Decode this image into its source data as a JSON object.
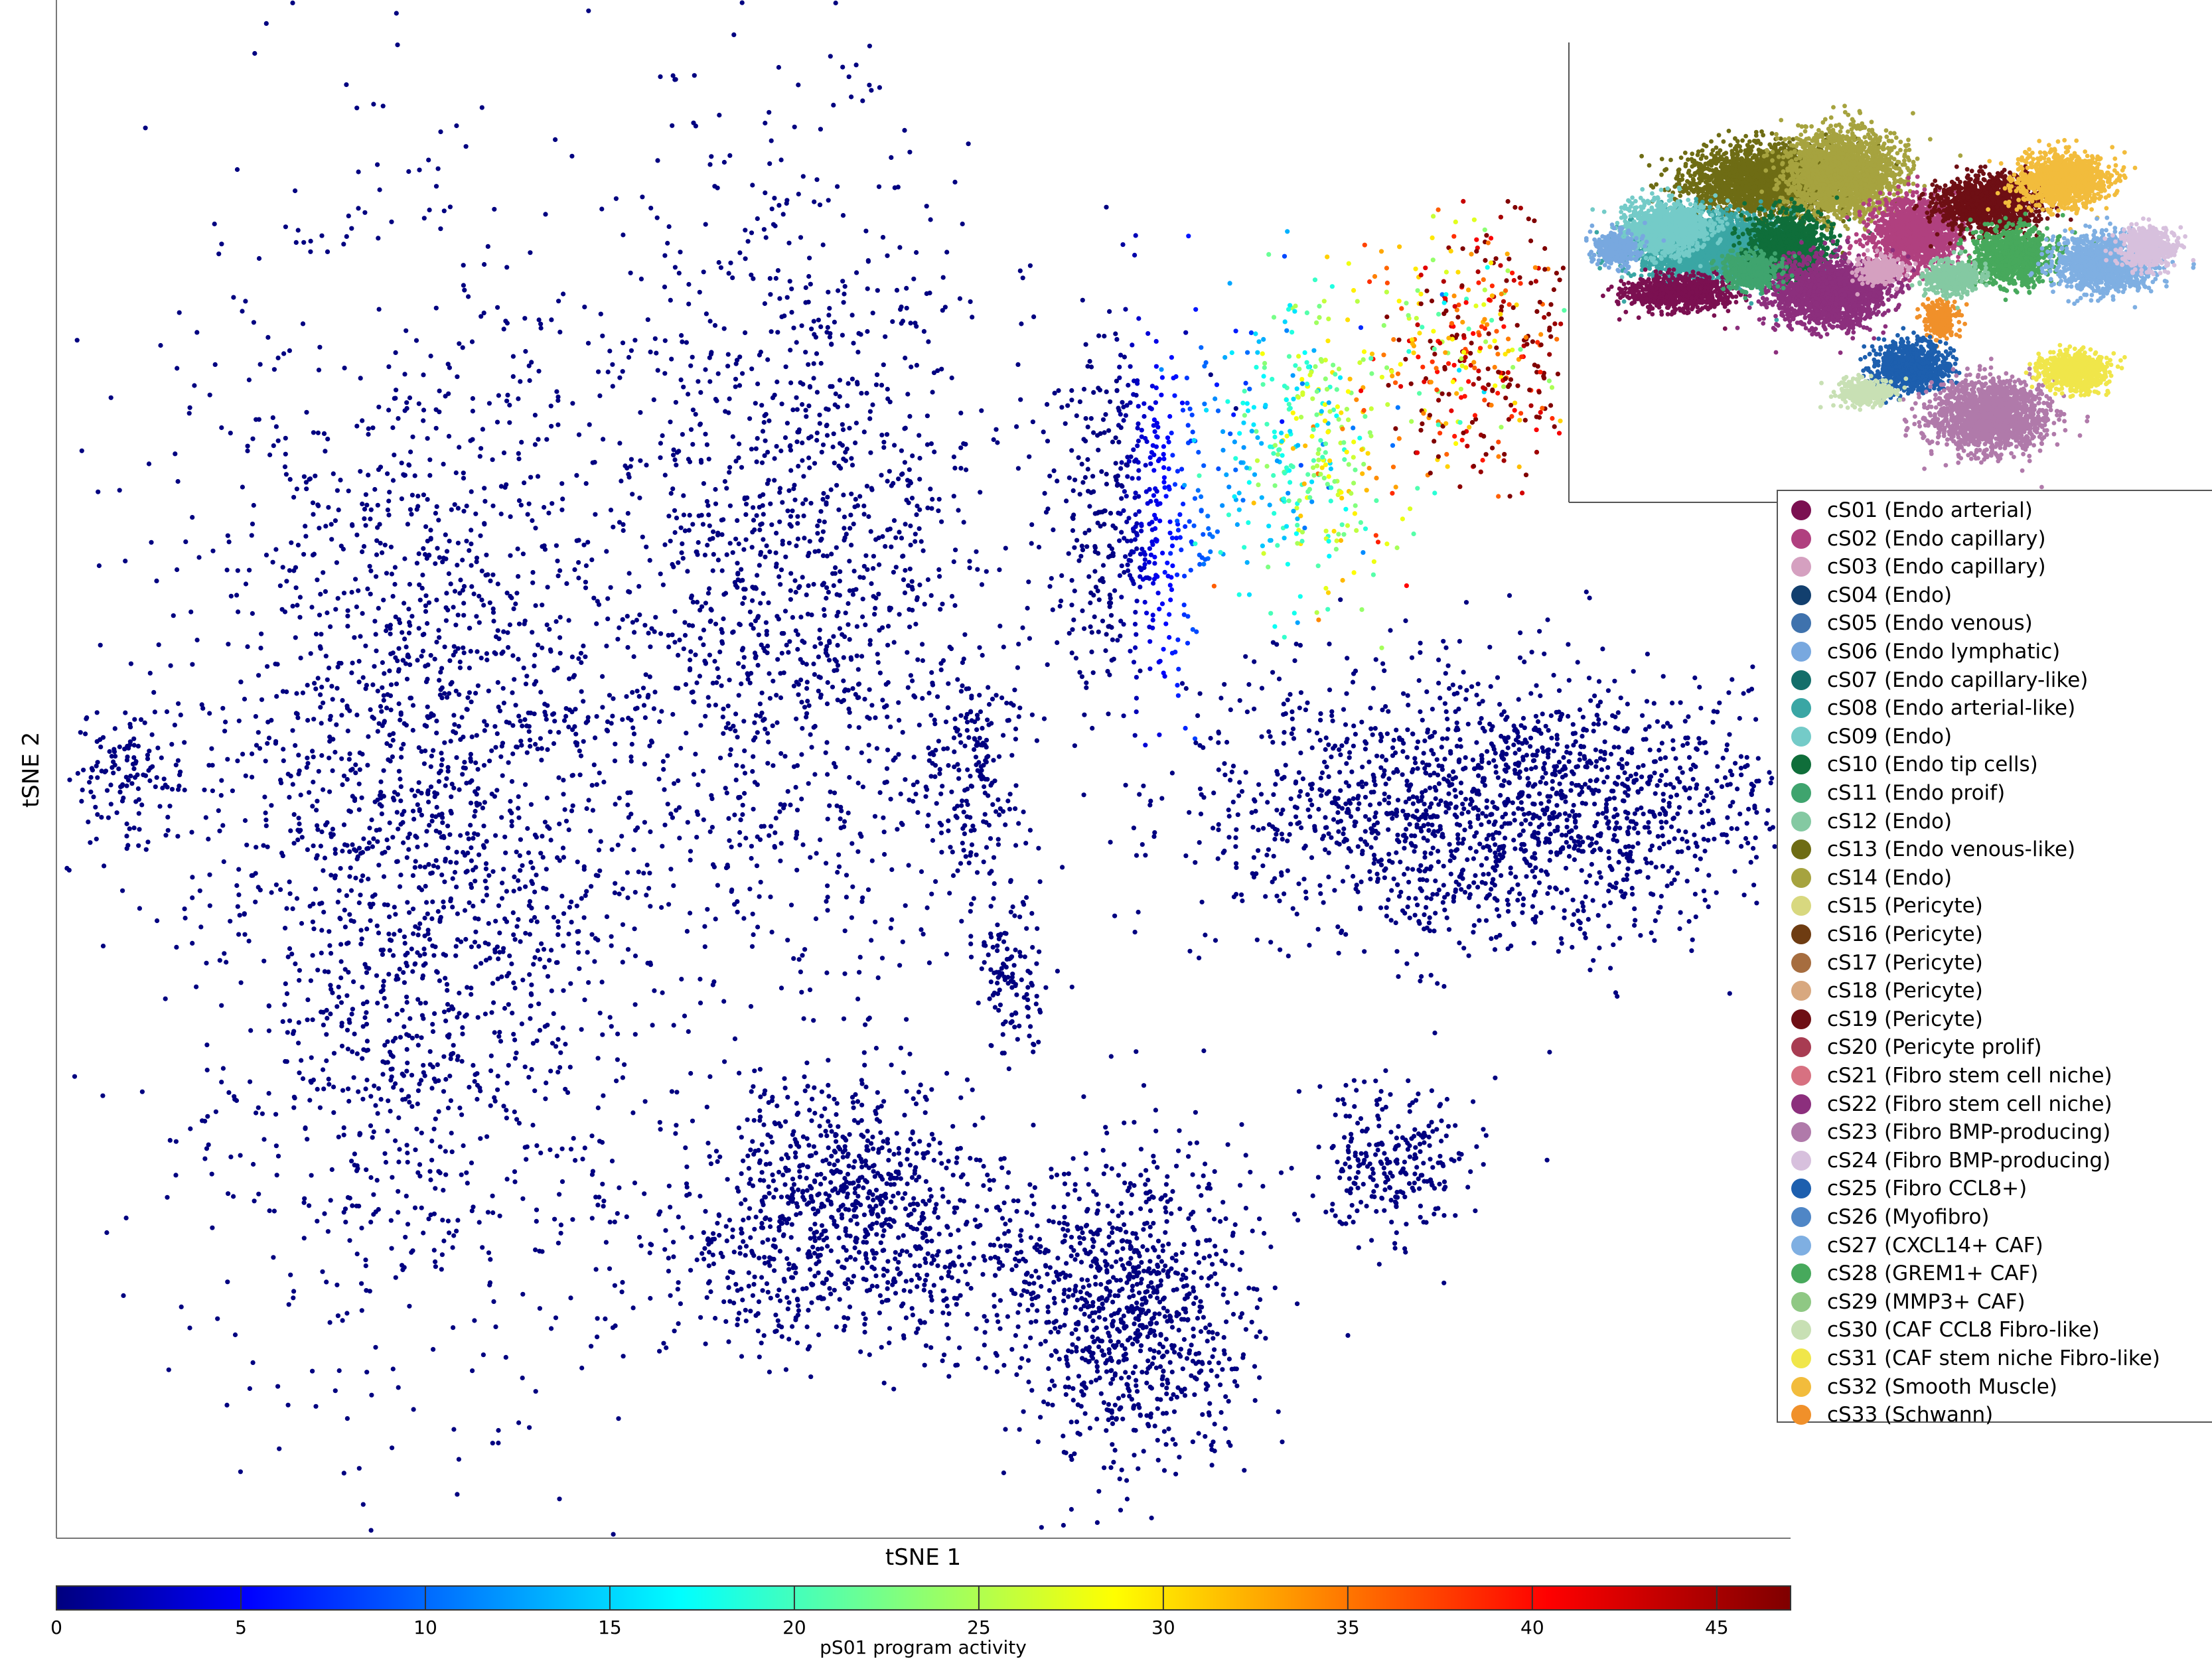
{
  "chart_data": {
    "type": "scatter",
    "xlabel": "tSNE 1",
    "ylabel": "tSNE 2",
    "grid": false,
    "colorbar": {
      "label": "pS01 program activity",
      "min": 0,
      "max": 47,
      "ticks": [
        0,
        5,
        10,
        15,
        20,
        25,
        30,
        35,
        40,
        45
      ],
      "colormap": "jet"
    },
    "legend": {
      "placement": "right",
      "entries": [
        {
          "label": "cS01 (Endo arterial)",
          "color": "#7b1051"
        },
        {
          "label": "cS02 (Endo capillary)",
          "color": "#b0407f"
        },
        {
          "label": "cS03 (Endo capillary)",
          "color": "#d5a0c0"
        },
        {
          "label": "cS04 (Endo)",
          "color": "#123f6e"
        },
        {
          "label": "cS05 (Endo venous)",
          "color": "#3f72ad"
        },
        {
          "label": "cS06 (Endo lymphatic)",
          "color": "#78a8df"
        },
        {
          "label": "cS07 (Endo capillary-like)",
          "color": "#136e6a"
        },
        {
          "label": "cS08 (Endo arterial-like)",
          "color": "#3aa6a4"
        },
        {
          "label": "cS09 (Endo)",
          "color": "#74cbc8"
        },
        {
          "label": "cS10 (Endo tip cells)",
          "color": "#0f6e3a"
        },
        {
          "label": "cS11 (Endo proif)",
          "color": "#3fa46e"
        },
        {
          "label": "cS12 (Endo)",
          "color": "#84c9a2"
        },
        {
          "label": "cS13 (Endo venous-like)",
          "color": "#6e6c14"
        },
        {
          "label": "cS14 (Endo)",
          "color": "#a6a33f"
        },
        {
          "label": "cS15 (Pericyte)",
          "color": "#d8d87f"
        },
        {
          "label": "cS16 (Pericyte)",
          "color": "#6e3c12"
        },
        {
          "label": "cS17 (Pericyte)",
          "color": "#a66d3f"
        },
        {
          "label": "cS18 (Pericyte)",
          "color": "#d8a87f"
        },
        {
          "label": "cS19 (Pericyte)",
          "color": "#6e0f14"
        },
        {
          "label": "cS20 (Pericyte prolif)",
          "color": "#a83c52"
        },
        {
          "label": "cS21 (Fibro stem cell niche)",
          "color": "#d77181"
        },
        {
          "label": "cS22 (Fibro stem cell niche)",
          "color": "#8c2f7d"
        },
        {
          "label": "cS23 (Fibro BMP-producing)",
          "color": "#b07aaa"
        },
        {
          "label": "cS24 (Fibro BMP-producing)",
          "color": "#d7c0dd"
        },
        {
          "label": "cS25 (Fibro CCL8+)",
          "color": "#1d5fae"
        },
        {
          "label": "cS26 (Myofibro)",
          "color": "#4f86c6"
        },
        {
          "label": "cS27 (CXCL14+ CAF)",
          "color": "#7fafe2"
        },
        {
          "label": "cS28 (GREM1+ CAF)",
          "color": "#47a95c"
        },
        {
          "label": "cS29 (MMP3+ CAF)",
          "color": "#8fc884"
        },
        {
          "label": "cS30 (CAF CCL8 Fibro-like)",
          "color": "#c8e0b4"
        },
        {
          "label": "cS31 (CAF stem niche Fibro-like)",
          "color": "#f0e64a"
        },
        {
          "label": "cS32 (Smooth Muscle)",
          "color": "#f2bc3c"
        },
        {
          "label": "cS33 (Schwann)",
          "color": "#f0902a"
        }
      ]
    },
    "clusters": [
      {
        "cx": 0.21,
        "cy": 0.52,
        "rx": 0.14,
        "ry": 0.35,
        "n": 2400,
        "activity": 0
      },
      {
        "cx": 0.43,
        "cy": 0.36,
        "rx": 0.11,
        "ry": 0.27,
        "n": 1400,
        "activity": 0
      },
      {
        "cx": 0.04,
        "cy": 0.5,
        "rx": 0.03,
        "ry": 0.05,
        "n": 120,
        "activity": 0
      },
      {
        "cx": 0.45,
        "cy": 0.76,
        "rx": 0.08,
        "ry": 0.06,
        "n": 500,
        "activity": 0
      },
      {
        "cx": 0.53,
        "cy": 0.5,
        "rx": 0.03,
        "ry": 0.08,
        "n": 200,
        "activity": 0
      },
      {
        "cx": 0.55,
        "cy": 0.63,
        "rx": 0.02,
        "ry": 0.05,
        "n": 120,
        "activity": 0
      },
      {
        "cx": 0.62,
        "cy": 0.33,
        "rx": 0.05,
        "ry": 0.12,
        "n": 500,
        "activity": 2
      },
      {
        "cx": 0.72,
        "cy": 0.28,
        "rx": 0.06,
        "ry": 0.1,
        "n": 400,
        "activity": 22
      },
      {
        "cx": 0.82,
        "cy": 0.22,
        "rx": 0.06,
        "ry": 0.08,
        "n": 400,
        "activity": 42
      },
      {
        "cx": 0.83,
        "cy": 0.52,
        "rx": 0.17,
        "ry": 0.09,
        "n": 1800,
        "activity": 0
      },
      {
        "cx": 0.47,
        "cy": 0.82,
        "rx": 0.14,
        "ry": 0.06,
        "n": 600,
        "activity": 0
      },
      {
        "cx": 0.62,
        "cy": 0.85,
        "rx": 0.07,
        "ry": 0.1,
        "n": 900,
        "activity": 0
      },
      {
        "cx": 0.77,
        "cy": 0.75,
        "rx": 0.05,
        "ry": 0.05,
        "n": 260,
        "activity": 0
      }
    ]
  }
}
